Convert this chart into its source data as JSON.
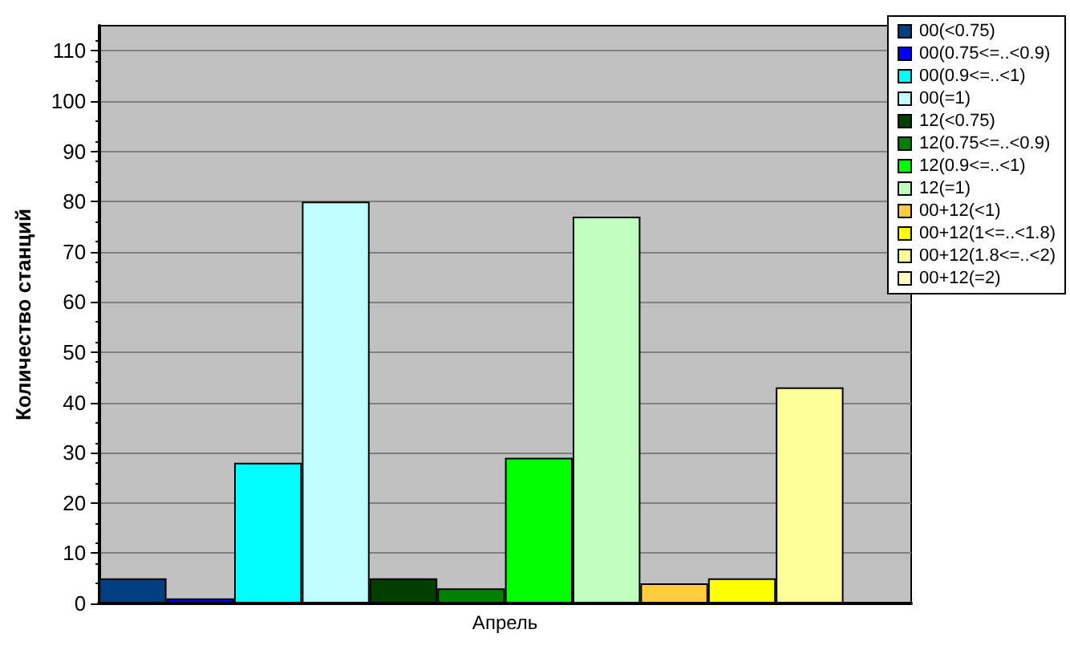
{
  "chart_data": {
    "type": "bar",
    "ylabel": "Количество станций",
    "categories": [
      "Апрель"
    ],
    "series": [
      {
        "name": "00(<0.75)",
        "color": "#003f7f",
        "values": [
          5
        ]
      },
      {
        "name": "00(0.75<=..<0.9)",
        "color": "#0000ff",
        "values": [
          1
        ]
      },
      {
        "name": "00(0.9<=..<1)",
        "color": "#00ffff",
        "values": [
          28
        ]
      },
      {
        "name": "00(=1)",
        "color": "#c0ffff",
        "values": [
          80
        ]
      },
      {
        "name": "12(<0.75)",
        "color": "#003f00",
        "values": [
          5
        ]
      },
      {
        "name": "12(0.75<=..<0.9)",
        "color": "#008000",
        "values": [
          3
        ]
      },
      {
        "name": "12(0.9<=..<1)",
        "color": "#00ff00",
        "values": [
          29
        ]
      },
      {
        "name": "12(=1)",
        "color": "#c0ffc0",
        "values": [
          77
        ]
      },
      {
        "name": "00+12(<1)",
        "color": "#ffcc40",
        "values": [
          4
        ]
      },
      {
        "name": "00+12(1<=..<1.8)",
        "color": "#ffff00",
        "values": [
          5
        ]
      },
      {
        "name": "00+12(1.8<=..<2)",
        "color": "#ffff99",
        "values": [
          43
        ]
      },
      {
        "name": "00+12(=2)",
        "color": "#ffffc0",
        "values": [
          null
        ]
      }
    ],
    "ylim": [
      0,
      115
    ],
    "yticks": [
      0,
      10,
      20,
      30,
      40,
      50,
      60,
      70,
      80,
      90,
      100,
      110
    ],
    "grid": "y",
    "legend": "top right"
  }
}
